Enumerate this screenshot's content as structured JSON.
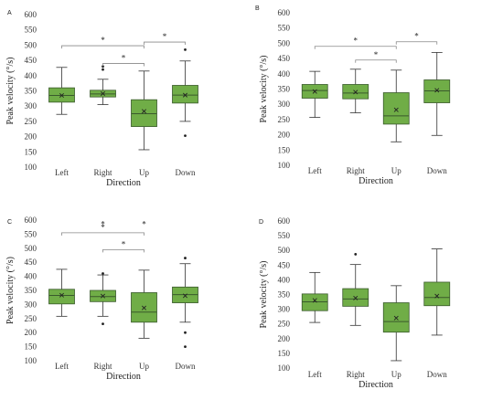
{
  "figure": {
    "style": {
      "box_fill": "#70ad47",
      "box_stroke": "#3a5a2c",
      "whisker_color": "#333333",
      "bracket_color": "#888888",
      "mean_marker": "x",
      "outlier_marker": "dot"
    }
  },
  "chart_data": [
    {
      "type": "box",
      "panel_label": "A",
      "title": "",
      "xlabel": "Direction",
      "ylabel": "Peak velocity (°/s)",
      "ylim": [
        100,
        600
      ],
      "ytick_step": 50,
      "yticks": [
        "100",
        "150",
        "200",
        "250",
        "300",
        "350",
        "400",
        "450",
        "500",
        "550",
        "600"
      ],
      "categories": [
        "Left",
        "Right",
        "Up",
        "Down"
      ],
      "boxes": [
        {
          "min": 273,
          "q1": 313,
          "median": 335,
          "q3": 360,
          "max": 427,
          "mean": 335,
          "outliers": []
        },
        {
          "min": 305,
          "q1": 330,
          "median": 340,
          "q3": 352,
          "max": 388,
          "mean": 341,
          "outliers": [
            420,
            430
          ]
        },
        {
          "min": 157,
          "q1": 233,
          "median": 275,
          "q3": 321,
          "max": 415,
          "mean": 283,
          "outliers": []
        },
        {
          "min": 250,
          "q1": 310,
          "median": 336,
          "q3": 368,
          "max": 448,
          "mean": 336,
          "outliers": [
            485,
            203
          ]
        }
      ],
      "brackets": [
        {
          "from": 0,
          "to": 2,
          "level": 498,
          "label": "*"
        },
        {
          "from": 1,
          "to": 2,
          "level": 440,
          "label": "*"
        },
        {
          "from": 2,
          "to": 3,
          "level": 510,
          "label": "*"
        }
      ]
    },
    {
      "type": "box",
      "panel_label": "B",
      "title": "",
      "xlabel": "Direction",
      "ylabel": "Peak velocity (°/s)",
      "ylim": [
        100,
        600
      ],
      "ytick_step": 50,
      "yticks": [
        "100",
        "150",
        "200",
        "250",
        "300",
        "350",
        "400",
        "450",
        "500",
        "550",
        "600"
      ],
      "categories": [
        "Left",
        "Right",
        "Up",
        "Down"
      ],
      "boxes": [
        {
          "min": 257,
          "q1": 320,
          "median": 345,
          "q3": 365,
          "max": 408,
          "mean": 342,
          "outliers": []
        },
        {
          "min": 272,
          "q1": 318,
          "median": 337,
          "q3": 365,
          "max": 415,
          "mean": 340,
          "outliers": []
        },
        {
          "min": 177,
          "q1": 235,
          "median": 262,
          "q3": 338,
          "max": 412,
          "mean": 282,
          "outliers": []
        },
        {
          "min": 198,
          "q1": 305,
          "median": 344,
          "q3": 380,
          "max": 470,
          "mean": 346,
          "outliers": []
        }
      ],
      "brackets": [
        {
          "from": 0,
          "to": 2,
          "level": 490,
          "label": "*"
        },
        {
          "from": 1,
          "to": 2,
          "level": 445,
          "label": "*"
        },
        {
          "from": 2,
          "to": 3,
          "level": 505,
          "label": "*"
        }
      ]
    },
    {
      "type": "box",
      "panel_label": "C",
      "title": "",
      "xlabel": "Direction",
      "ylabel": "Peak velocity (°/s)",
      "ylim": [
        100,
        600
      ],
      "ytick_step": 50,
      "yticks": [
        "100",
        "150",
        "200",
        "250",
        "300",
        "350",
        "400",
        "450",
        "500",
        "550",
        "600"
      ],
      "categories": [
        "Left",
        "Right",
        "Up",
        "Down"
      ],
      "boxes": [
        {
          "min": 258,
          "q1": 302,
          "median": 332,
          "q3": 354,
          "max": 425,
          "mean": 333,
          "outliers": []
        },
        {
          "min": 258,
          "q1": 310,
          "median": 328,
          "q3": 350,
          "max": 405,
          "mean": 330,
          "outliers": [
            410,
            231
          ]
        },
        {
          "min": 180,
          "q1": 237,
          "median": 273,
          "q3": 342,
          "max": 422,
          "mean": 288,
          "outliers": []
        },
        {
          "min": 237,
          "q1": 306,
          "median": 335,
          "q3": 362,
          "max": 445,
          "mean": 331,
          "outliers": [
            465,
            200,
            150
          ]
        }
      ],
      "brackets": [
        {
          "from": 0,
          "to": 2,
          "level": 555,
          "label": "*"
        },
        {
          "from": 1,
          "to": 2,
          "level": 495,
          "label": "*"
        }
      ],
      "extra_marks": [
        {
          "category": 1,
          "level": 575,
          "label": "*"
        },
        {
          "category": 2,
          "level": 575,
          "label": "*"
        }
      ]
    },
    {
      "type": "box",
      "panel_label": "D",
      "title": "",
      "xlabel": "Direction",
      "ylabel": "Peak velocity (°/s)",
      "ylim": [
        100,
        600
      ],
      "ytick_step": 50,
      "yticks": [
        "100",
        "150",
        "200",
        "250",
        "300",
        "350",
        "400",
        "450",
        "500",
        "550",
        "600"
      ],
      "categories": [
        "Left",
        "Right",
        "Up",
        "Down"
      ],
      "boxes": [
        {
          "min": 255,
          "q1": 295,
          "median": 325,
          "q3": 352,
          "max": 425,
          "mean": 330,
          "outliers": []
        },
        {
          "min": 245,
          "q1": 310,
          "median": 335,
          "q3": 370,
          "max": 452,
          "mean": 338,
          "outliers": [
            487
          ]
        },
        {
          "min": 125,
          "q1": 222,
          "median": 258,
          "q3": 322,
          "max": 380,
          "mean": 270,
          "outliers": []
        },
        {
          "min": 212,
          "q1": 312,
          "median": 340,
          "q3": 392,
          "max": 505,
          "mean": 345,
          "outliers": []
        }
      ],
      "brackets": []
    }
  ]
}
